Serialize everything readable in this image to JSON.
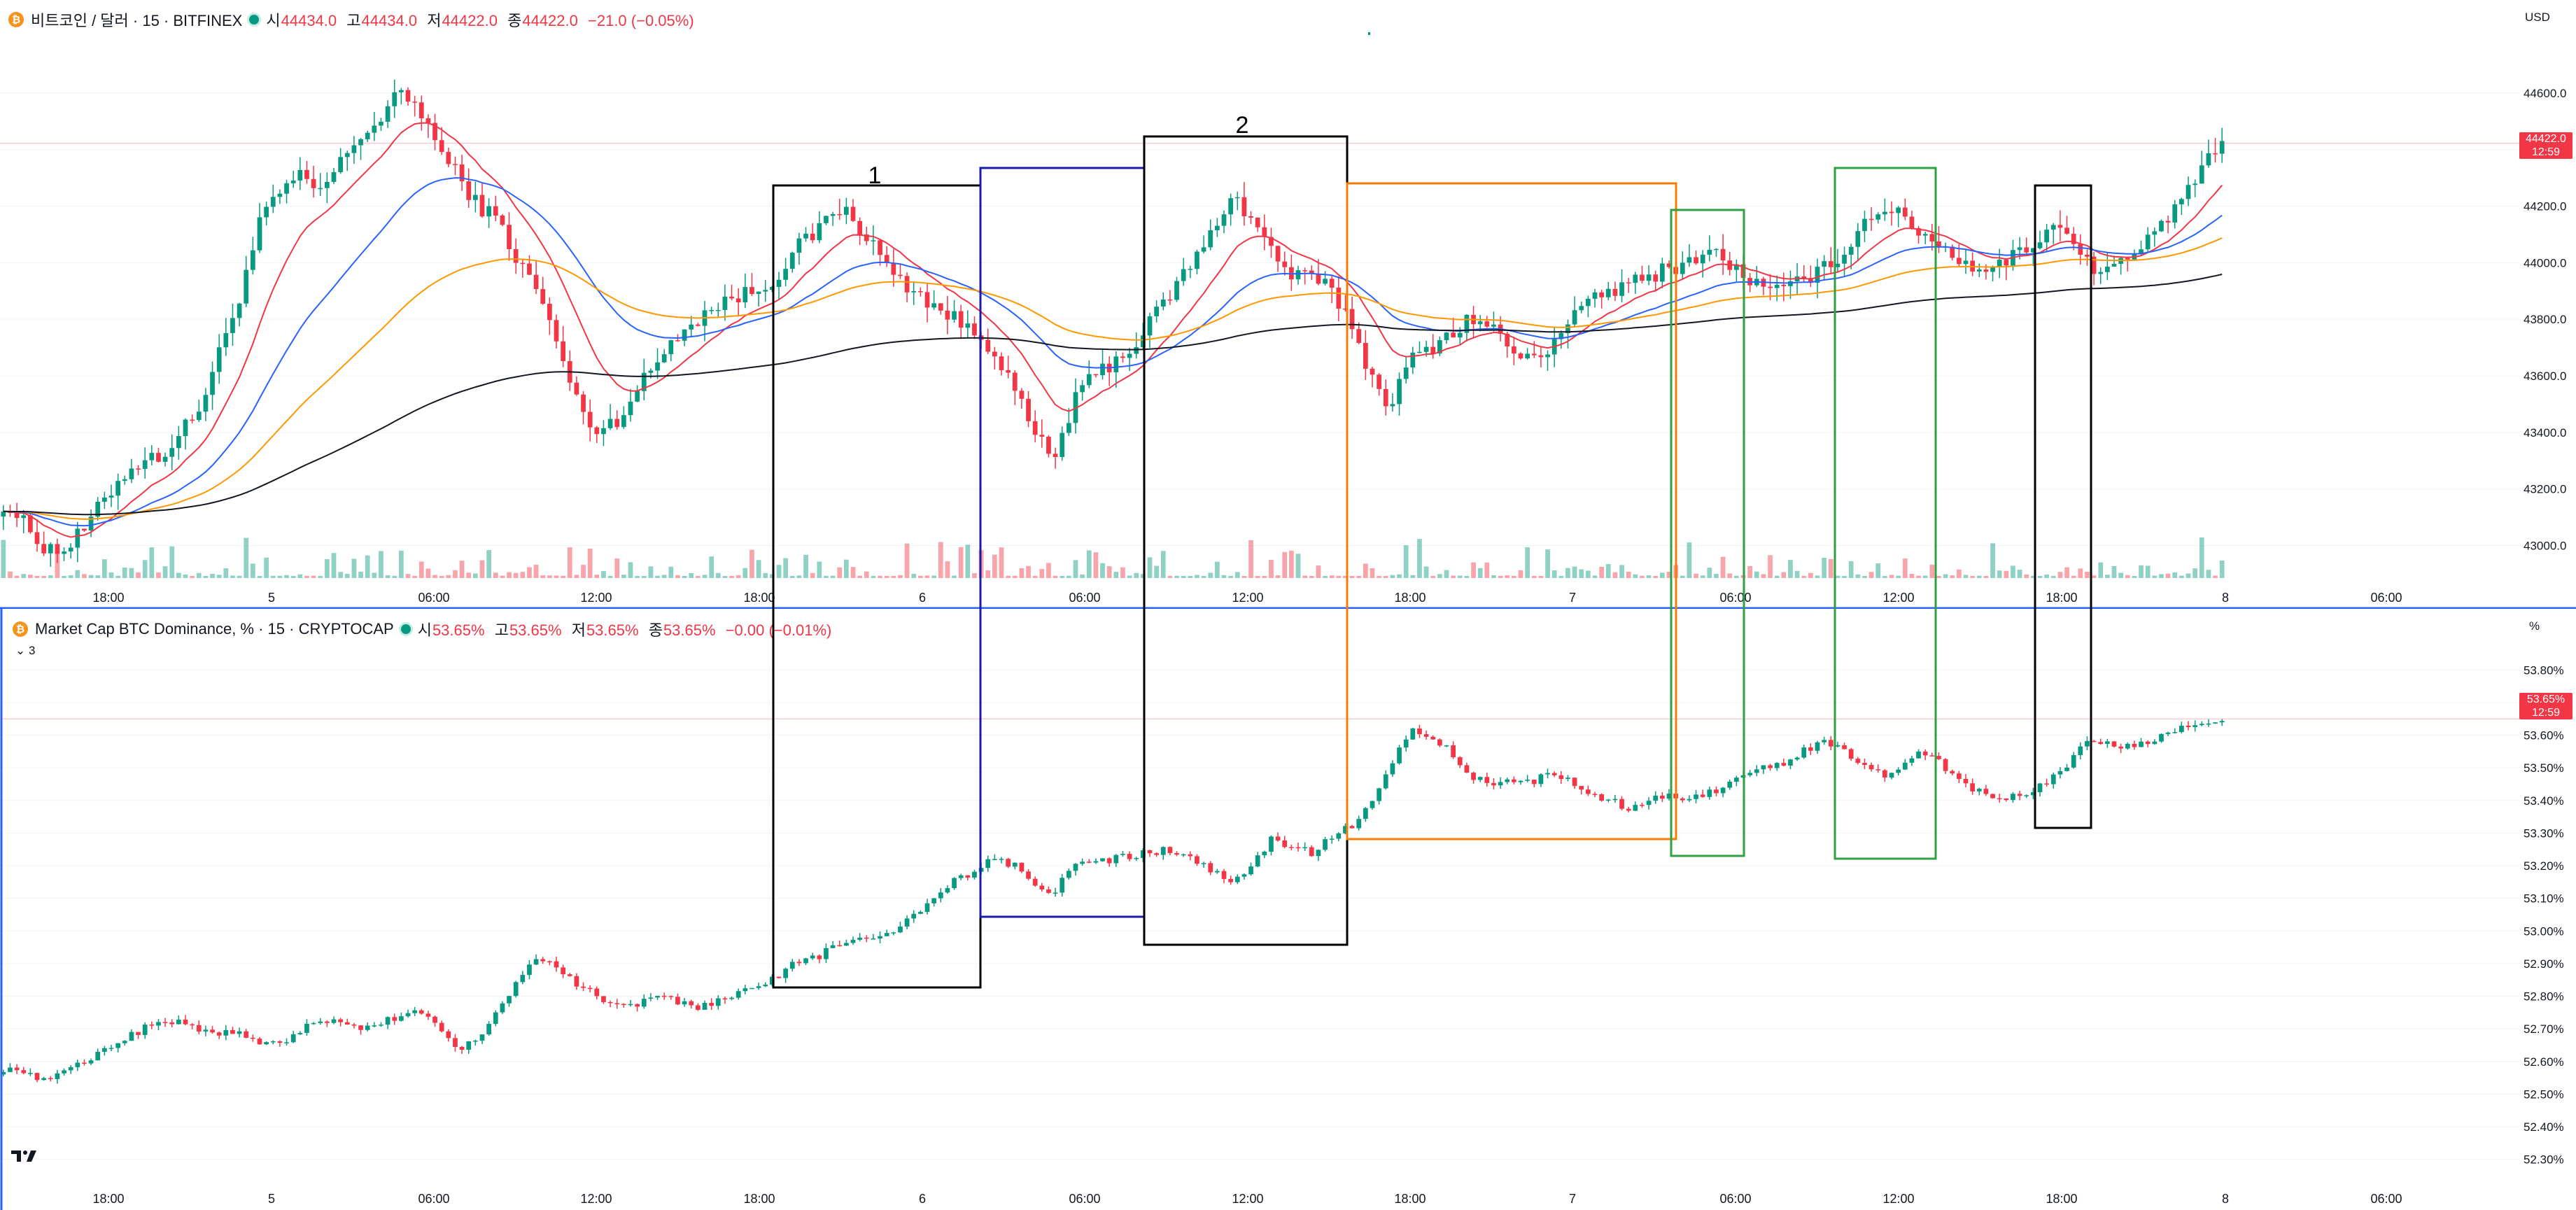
{
  "chart_data": [
    {
      "type": "candlestick",
      "title": "비트코인 / 달러 · 15 · BITFINEX",
      "ohlc": {
        "open_label": "시",
        "open": "44434.0",
        "high_label": "고",
        "high": "44434.0",
        "low_label": "저",
        "low": "44422.0",
        "close_label": "종",
        "close": "44422.0",
        "change": "−21.0 (−0.05%)"
      },
      "currency": "USD",
      "last_price": "44422.0",
      "countdown": "12:59",
      "y_ticks": [
        "44600.0",
        "44400.0",
        "44200.0",
        "44000.0",
        "43800.0",
        "43600.0",
        "43400.0",
        "43200.0",
        "43000.0"
      ],
      "ylim": [
        42900,
        44780
      ],
      "x_ticks": [
        "18:00",
        "5",
        "06:00",
        "12:00",
        "18:00",
        "6",
        "06:00",
        "12:00",
        "18:00",
        "7",
        "06:00",
        "12:00",
        "18:00",
        "8",
        "06:00"
      ],
      "close_path": [
        43150,
        43080,
        43000,
        42980,
        43050,
        43150,
        43250,
        43300,
        43320,
        43400,
        43500,
        43700,
        43900,
        44150,
        44250,
        44300,
        44250,
        44350,
        44450,
        44500,
        44600,
        44550,
        44400,
        44300,
        44200,
        44150,
        44000,
        43900,
        43700,
        43500,
        43400,
        43450,
        43550,
        43650,
        43750,
        43800,
        43850,
        43880,
        43900,
        43950,
        44050,
        44100,
        44200,
        44150,
        44050,
        43950,
        43900,
        43850,
        43800,
        43750,
        43700,
        43550,
        43400,
        43300,
        43500,
        43600,
        43650,
        43700,
        43800,
        43900,
        44000,
        44100,
        44250,
        44150,
        44050,
        43950,
        43950,
        43900,
        43800,
        43600,
        43500,
        43650,
        43700,
        43750,
        43800,
        43780,
        43700,
        43650,
        43700,
        43800,
        43850,
        43900,
        43920,
        43950,
        43980,
        44000,
        44050,
        44000,
        43950,
        43900,
        43900,
        43950,
        43980,
        44050,
        44150,
        44200,
        44150,
        44100,
        44050,
        44000,
        43980,
        44000,
        44050,
        44100,
        44150,
        44000,
        43980,
        44000,
        44050,
        44150,
        44200,
        44350,
        44420
      ],
      "ma_series": [
        {
          "color": "#f23645",
          "smoothing": 4
        },
        {
          "color": "#2962ff",
          "smoothing": 10
        },
        {
          "color": "#ff9800",
          "smoothing": 22
        },
        {
          "color": "#131722",
          "smoothing": 60
        }
      ],
      "annotations": [
        {
          "label": "1",
          "color": "#000000"
        },
        {
          "label": "2",
          "color": "#000000"
        }
      ]
    },
    {
      "type": "candlestick",
      "title": "Market Cap BTC Dominance, % · 15 · CRYPTOCAP",
      "ohlc": {
        "open_label": "시",
        "open": "53.65%",
        "high_label": "고",
        "high": "53.65%",
        "low_label": "저",
        "low": "53.65%",
        "close_label": "종",
        "close": "53.65%",
        "change": "−0.00 (−0.01%)"
      },
      "unit": "%",
      "collapsed_count": "3",
      "last_value": "53.65%",
      "countdown": "12:59",
      "y_ticks": [
        "53.80%",
        "53.70%",
        "53.60%",
        "53.50%",
        "53.40%",
        "53.30%",
        "53.20%",
        "53.10%",
        "53.00%",
        "52.90%",
        "52.80%",
        "52.70%",
        "52.60%",
        "52.50%",
        "52.40%",
        "52.30%"
      ],
      "ylim": [
        52.25,
        53.88
      ],
      "x_ticks": [
        "18:00",
        "5",
        "06:00",
        "12:00",
        "18:00",
        "6",
        "06:00",
        "12:00",
        "18:00",
        "7",
        "06:00",
        "12:00",
        "18:00",
        "8",
        "06:00"
      ],
      "close_path": [
        52.58,
        52.56,
        52.55,
        52.57,
        52.6,
        52.63,
        52.66,
        52.7,
        52.73,
        52.72,
        52.7,
        52.69,
        52.68,
        52.66,
        52.65,
        52.7,
        52.73,
        52.72,
        52.7,
        52.72,
        52.73,
        52.75,
        52.7,
        52.63,
        52.68,
        52.75,
        52.85,
        52.93,
        52.88,
        52.83,
        52.8,
        52.78,
        52.77,
        52.8,
        52.78,
        52.77,
        52.78,
        52.8,
        52.83,
        52.86,
        52.9,
        52.92,
        52.95,
        52.97,
        52.98,
        53.0,
        53.05,
        53.1,
        53.15,
        53.18,
        53.22,
        53.2,
        53.15,
        53.12,
        53.2,
        53.22,
        53.22,
        53.23,
        53.24,
        53.25,
        53.22,
        53.18,
        53.15,
        53.2,
        53.28,
        53.26,
        53.24,
        53.28,
        53.32,
        53.4,
        53.5,
        53.62,
        53.6,
        53.55,
        53.48,
        53.45,
        53.47,
        53.45,
        53.48,
        53.46,
        53.42,
        53.4,
        53.38,
        53.4,
        53.42,
        53.4,
        53.42,
        53.45,
        53.48,
        53.5,
        53.52,
        53.56,
        53.58,
        53.55,
        53.5,
        53.47,
        53.52,
        53.55,
        53.5,
        53.45,
        53.42,
        53.4,
        53.42,
        53.45,
        53.5,
        53.57,
        53.58,
        53.56,
        53.58,
        53.6,
        53.62,
        53.63,
        53.65
      ],
      "ma_series": [],
      "annotations": []
    }
  ]
}
